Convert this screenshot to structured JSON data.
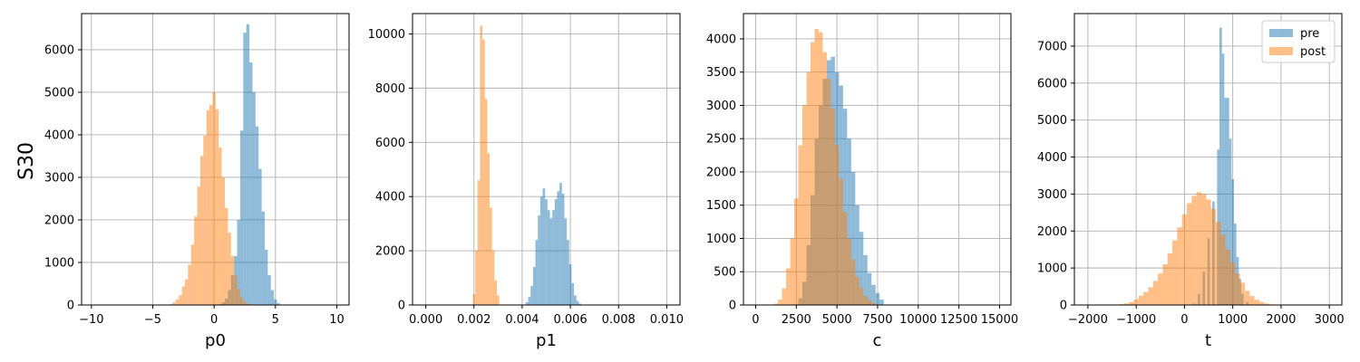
{
  "figure": {
    "row_label": "S30"
  },
  "colors": {
    "pre": "#1f77b4",
    "post": "#ff7f0e",
    "grid": "#b0b0b0"
  },
  "chart_data": [
    {
      "type": "histogram",
      "xlabel": "p0",
      "xlim": [
        -10.8,
        11.0
      ],
      "ylim": [
        0,
        6850
      ],
      "xticks": [
        -10,
        -5,
        0,
        5,
        10
      ],
      "xtick_labels": [
        "−10",
        "−5",
        "0",
        "5",
        "10"
      ],
      "yticks": [
        0,
        1000,
        2000,
        3000,
        4000,
        5000,
        6000
      ],
      "grid": true,
      "series": [
        {
          "name": "pre",
          "bins": [
            [
              0.5,
              20
            ],
            [
              0.75,
              60
            ],
            [
              1.0,
              150
            ],
            [
              1.25,
              350
            ],
            [
              1.5,
              700
            ],
            [
              1.75,
              1150
            ],
            [
              2.0,
              2000
            ],
            [
              2.25,
              4100
            ],
            [
              2.5,
              6400
            ],
            [
              2.75,
              6600
            ],
            [
              3.0,
              5700
            ],
            [
              3.25,
              5000
            ],
            [
              3.5,
              4200
            ],
            [
              3.75,
              3200
            ],
            [
              4.0,
              2200
            ],
            [
              4.25,
              1300
            ],
            [
              4.5,
              700
            ],
            [
              4.75,
              350
            ],
            [
              5.0,
              130
            ],
            [
              5.25,
              40
            ]
          ]
        },
        {
          "name": "post",
          "bins": [
            [
              -3.5,
              20
            ],
            [
              -3.25,
              60
            ],
            [
              -3.0,
              130
            ],
            [
              -2.75,
              230
            ],
            [
              -2.5,
              430
            ],
            [
              -2.25,
              600
            ],
            [
              -2.0,
              950
            ],
            [
              -1.75,
              1420
            ],
            [
              -1.5,
              2080
            ],
            [
              -1.25,
              2780
            ],
            [
              -1.0,
              3500
            ],
            [
              -0.75,
              3980
            ],
            [
              -0.5,
              4580
            ],
            [
              -0.25,
              4700
            ],
            [
              0.0,
              5000
            ],
            [
              0.25,
              4600
            ],
            [
              0.5,
              3700
            ],
            [
              0.75,
              3000
            ],
            [
              1.0,
              2280
            ],
            [
              1.25,
              1700
            ],
            [
              1.5,
              1150
            ],
            [
              1.75,
              700
            ],
            [
              2.0,
              380
            ],
            [
              2.25,
              180
            ],
            [
              2.5,
              80
            ],
            [
              2.75,
              30
            ]
          ]
        }
      ]
    },
    {
      "type": "histogram",
      "xlabel": "p1",
      "xlim": [
        -0.00055,
        0.01055
      ],
      "ylim": [
        0,
        10750
      ],
      "xticks": [
        0,
        0.002,
        0.004,
        0.006,
        0.008,
        0.01
      ],
      "xtick_labels": [
        "0.000",
        "0.002",
        "0.004",
        "0.006",
        "0.008",
        "0.010"
      ],
      "yticks": [
        0,
        2000,
        4000,
        6000,
        8000,
        10000
      ],
      "grid": true,
      "series": [
        {
          "name": "pre",
          "bins": [
            [
              0.0042,
              100
            ],
            [
              0.0043,
              300
            ],
            [
              0.0044,
              700
            ],
            [
              0.0045,
              1400
            ],
            [
              0.0046,
              2400
            ],
            [
              0.0047,
              3300
            ],
            [
              0.0048,
              4000
            ],
            [
              0.0049,
              4300
            ],
            [
              0.005,
              3900
            ],
            [
              0.0051,
              3500
            ],
            [
              0.0052,
              3200
            ],
            [
              0.0053,
              3500
            ],
            [
              0.0054,
              3900
            ],
            [
              0.0055,
              4200
            ],
            [
              0.0056,
              4500
            ],
            [
              0.0057,
              4100
            ],
            [
              0.0058,
              3200
            ],
            [
              0.0059,
              2400
            ],
            [
              0.006,
              1500
            ],
            [
              0.0061,
              800
            ],
            [
              0.0062,
              350
            ],
            [
              0.0063,
              150
            ],
            [
              0.0064,
              50
            ]
          ]
        },
        {
          "name": "post",
          "bins": [
            [
              0.002,
              400
            ],
            [
              0.0021,
              2000
            ],
            [
              0.0022,
              4600
            ],
            [
              0.0023,
              10300
            ],
            [
              0.0024,
              9800
            ],
            [
              0.0025,
              7600
            ],
            [
              0.0026,
              5600
            ],
            [
              0.0027,
              3600
            ],
            [
              0.0028,
              2000
            ],
            [
              0.0029,
              900
            ],
            [
              0.003,
              350
            ]
          ]
        }
      ]
    },
    {
      "type": "histogram",
      "xlabel": "c",
      "xlim": [
        -750,
        15700
      ],
      "ylim": [
        0,
        4380
      ],
      "xticks": [
        0,
        2500,
        5000,
        7500,
        10000,
        12500,
        15000
      ],
      "xtick_labels": [
        "0",
        "2500",
        "5000",
        "7500",
        "10000",
        "12500",
        "15000"
      ],
      "yticks": [
        0,
        500,
        1000,
        1500,
        2000,
        2500,
        3000,
        3500,
        4000
      ],
      "grid": true,
      "series": [
        {
          "name": "pre",
          "bins": [
            [
              2750,
              100
            ],
            [
              3000,
              350
            ],
            [
              3250,
              900
            ],
            [
              3500,
              1650
            ],
            [
              3750,
              2500
            ],
            [
              4000,
              3000
            ],
            [
              4250,
              3400
            ],
            [
              4500,
              3680
            ],
            [
              4750,
              3730
            ],
            [
              5000,
              3500
            ],
            [
              5250,
              3300
            ],
            [
              5500,
              2950
            ],
            [
              5750,
              2500
            ],
            [
              6000,
              2000
            ],
            [
              6250,
              1500
            ],
            [
              6500,
              1100
            ],
            [
              6750,
              750
            ],
            [
              7000,
              480
            ],
            [
              7250,
              300
            ],
            [
              7500,
              180
            ],
            [
              7750,
              80
            ]
          ]
        },
        {
          "name": "post",
          "bins": [
            [
              1250,
              20
            ],
            [
              1500,
              80
            ],
            [
              1750,
              250
            ],
            [
              2000,
              550
            ],
            [
              2250,
              1000
            ],
            [
              2500,
              1600
            ],
            [
              2750,
              2400
            ],
            [
              3000,
              3000
            ],
            [
              3250,
              3500
            ],
            [
              3500,
              3950
            ],
            [
              3750,
              4150
            ],
            [
              4000,
              4100
            ],
            [
              4250,
              3800
            ],
            [
              4500,
              3400
            ],
            [
              4750,
              2950
            ],
            [
              5000,
              2400
            ],
            [
              5250,
              1900
            ],
            [
              5500,
              1400
            ],
            [
              5750,
              1000
            ],
            [
              6000,
              680
            ],
            [
              6250,
              420
            ],
            [
              6500,
              260
            ],
            [
              6750,
              140
            ],
            [
              7000,
              70
            ],
            [
              7250,
              30
            ]
          ]
        }
      ]
    },
    {
      "type": "histogram",
      "xlabel": "t",
      "xlim": [
        -2280,
        3260
      ],
      "ylim": [
        0,
        7880
      ],
      "xticks": [
        -2000,
        -1000,
        0,
        1000,
        2000,
        3000
      ],
      "xtick_labels": [
        "−2000",
        "−1000",
        "0",
        "1000",
        "2000",
        "3000"
      ],
      "yticks": [
        0,
        1000,
        2000,
        3000,
        4000,
        5000,
        6000,
        7000
      ],
      "grid": true,
      "legend": {
        "position": "top-right",
        "entries": [
          "pre",
          "post"
        ]
      },
      "series": [
        {
          "name": "pre",
          "bins": [
            [
              200,
              40
            ],
            [
              300,
              300
            ],
            [
              400,
              900
            ],
            [
              500,
              1800
            ],
            [
              600,
              2800
            ],
            [
              700,
              4200
            ],
            [
              750,
              7500
            ],
            [
              800,
              6800
            ],
            [
              850,
              5600
            ],
            [
              900,
              5600
            ],
            [
              950,
              4500
            ],
            [
              1000,
              3400
            ],
            [
              1050,
              2200
            ],
            [
              1100,
              1300
            ],
            [
              1150,
              700
            ],
            [
              1200,
              300
            ],
            [
              1300,
              80
            ]
          ]
        },
        {
          "name": "post",
          "bins": [
            [
              -1300,
              20
            ],
            [
              -1200,
              40
            ],
            [
              -1100,
              80
            ],
            [
              -1000,
              150
            ],
            [
              -900,
              250
            ],
            [
              -800,
              350
            ],
            [
              -700,
              480
            ],
            [
              -600,
              650
            ],
            [
              -500,
              850
            ],
            [
              -400,
              1100
            ],
            [
              -300,
              1400
            ],
            [
              -200,
              1750
            ],
            [
              -100,
              2100
            ],
            [
              0,
              2450
            ],
            [
              100,
              2750
            ],
            [
              200,
              2950
            ],
            [
              300,
              3050
            ],
            [
              400,
              3000
            ],
            [
              500,
              2850
            ],
            [
              600,
              2600
            ],
            [
              700,
              2250
            ],
            [
              800,
              1900
            ],
            [
              900,
              1500
            ],
            [
              1000,
              1150
            ],
            [
              1100,
              850
            ],
            [
              1200,
              600
            ],
            [
              1300,
              380
            ],
            [
              1400,
              240
            ],
            [
              1500,
              140
            ],
            [
              1600,
              80
            ],
            [
              1700,
              40
            ],
            [
              1800,
              15
            ]
          ]
        }
      ]
    }
  ]
}
